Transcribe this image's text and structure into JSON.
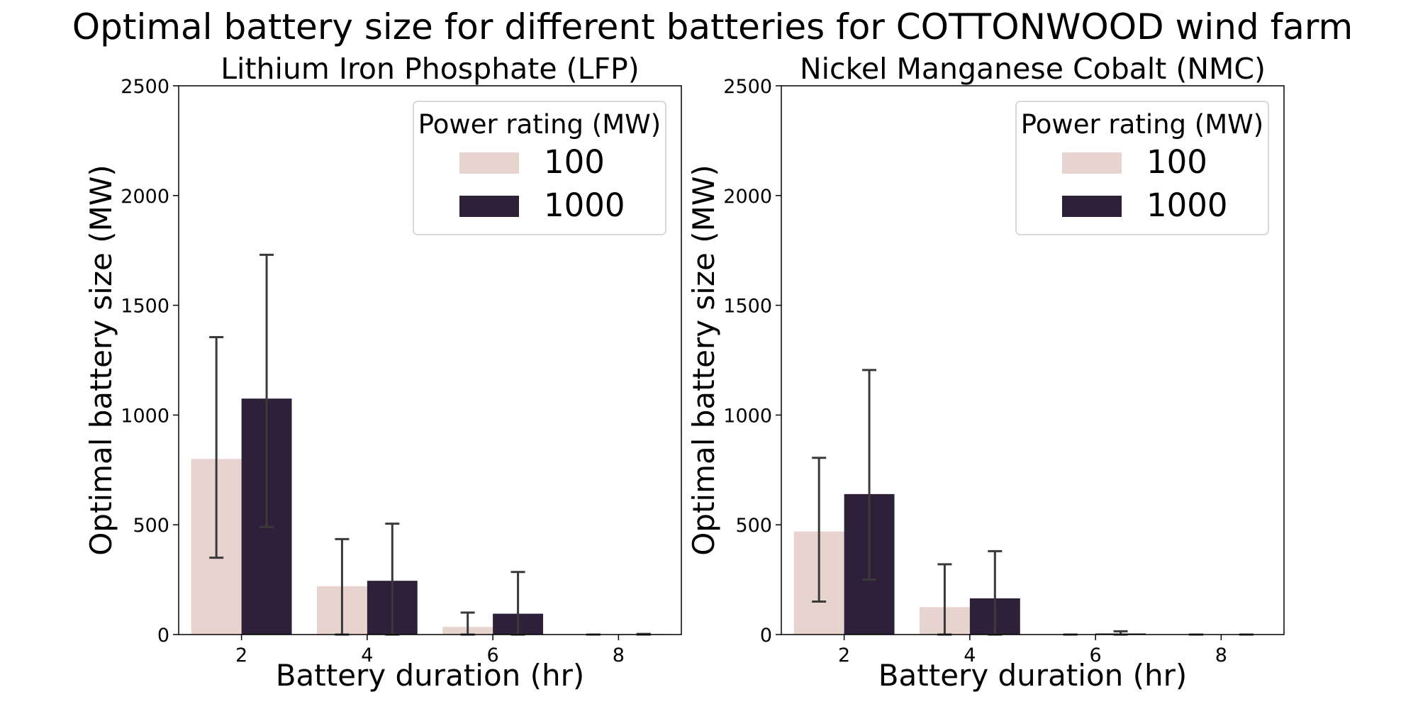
{
  "figure": {
    "title": "Optimal battery size for different batteries for COTTONWOOD wind farm"
  },
  "colors": {
    "series_100": "#e8d4cf",
    "series_1000": "#2d2038",
    "error_bar": "#3a3a3a",
    "legend_border": "#d9d9d9"
  },
  "chart_data": [
    {
      "type": "bar",
      "title": "Lithium Iron Phosphate (LFP)",
      "xlabel": "Battery duration (hr)",
      "ylabel": "Optimal battery size (MW)",
      "categories": [
        "2",
        "4",
        "6",
        "8"
      ],
      "ylim": [
        0,
        2500
      ],
      "yticks": [
        0,
        500,
        1000,
        1500,
        2000,
        2500
      ],
      "grid": false,
      "legend": {
        "title": "Power rating (MW)",
        "location": "top-right"
      },
      "series": [
        {
          "name": "100",
          "values": [
            800,
            220,
            35,
            0
          ],
          "error_low": [
            350,
            0,
            0,
            0
          ],
          "error_high": [
            1355,
            435,
            100,
            0
          ]
        },
        {
          "name": "1000",
          "values": [
            1075,
            245,
            95,
            2
          ],
          "error_low": [
            490,
            0,
            0,
            0
          ],
          "error_high": [
            1730,
            505,
            285,
            3
          ]
        }
      ]
    },
    {
      "type": "bar",
      "title": "Nickel Manganese Cobalt (NMC)",
      "xlabel": "Battery duration (hr)",
      "ylabel": "Optimal battery size (MW)",
      "categories": [
        "2",
        "4",
        "6",
        "8"
      ],
      "ylim": [
        0,
        2500
      ],
      "yticks": [
        0,
        500,
        1000,
        1500,
        2000,
        2500
      ],
      "grid": false,
      "legend": {
        "title": "Power rating (MW)",
        "location": "top-right"
      },
      "series": [
        {
          "name": "100",
          "values": [
            470,
            125,
            0,
            0
          ],
          "error_low": [
            150,
            0,
            0,
            0
          ],
          "error_high": [
            805,
            320,
            0,
            0
          ]
        },
        {
          "name": "1000",
          "values": [
            640,
            165,
            5,
            0
          ],
          "error_low": [
            250,
            0,
            0,
            0
          ],
          "error_high": [
            1205,
            380,
            15,
            0
          ]
        }
      ]
    }
  ]
}
